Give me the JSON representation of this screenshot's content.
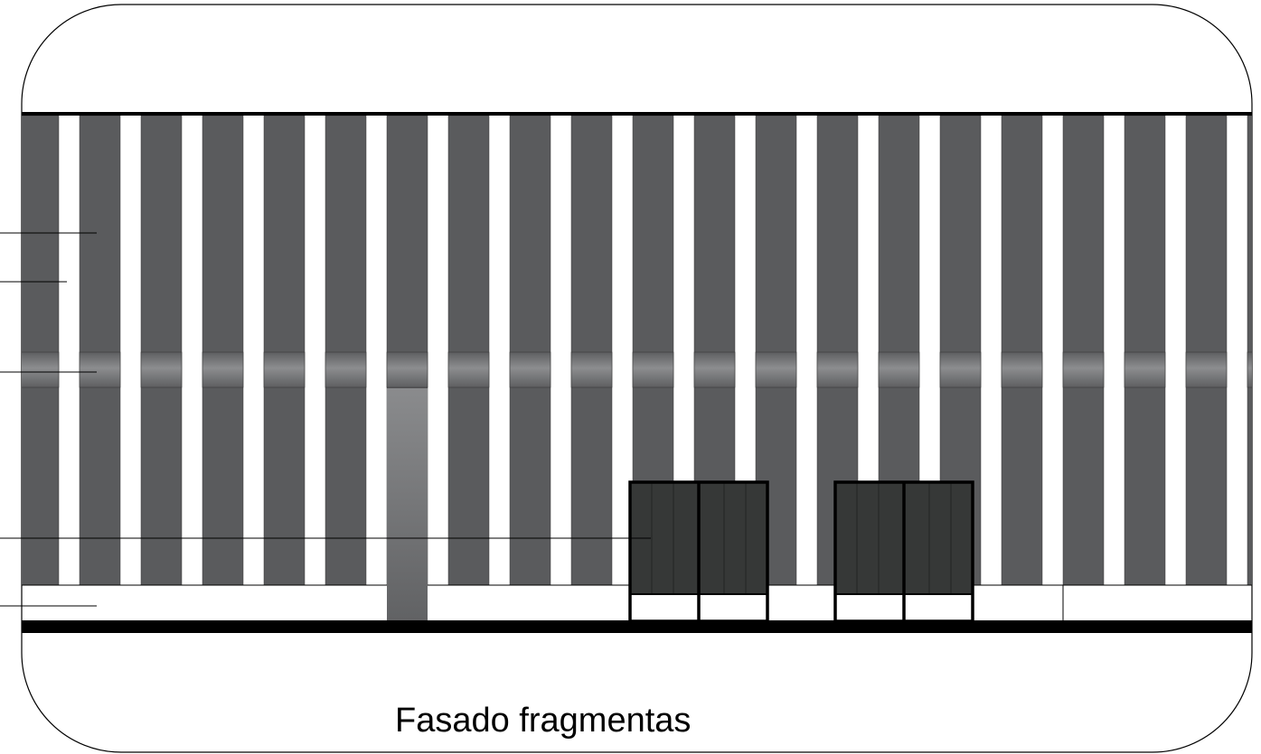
{
  "caption": "Fasado fragmentas",
  "colors": {
    "panel": "#5a5b5d",
    "panel_dark": "#363837",
    "gap": "#ffffff",
    "band_top": "#8c8d8f",
    "band_bottom": "#5e5f61",
    "door_top": "#8a8b8d",
    "door_bottom": "#616264",
    "line": "#000000"
  }
}
